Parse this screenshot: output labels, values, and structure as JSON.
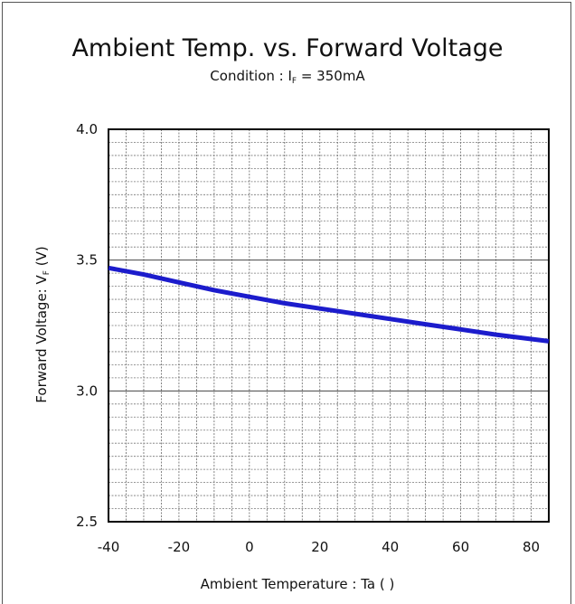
{
  "chart_data": {
    "type": "line",
    "title": "Ambient Temp. vs. Forward Voltage",
    "subtitle": {
      "prefix": "Condition :  I",
      "sub": "F",
      "suffix": " = 350mA"
    },
    "xlabel": "Ambient  Temperature : Ta (    )",
    "ylabel": {
      "main": "Forward Voltage: V",
      "sub": "F",
      "unit": " (V)"
    },
    "xlim": [
      -40,
      85
    ],
    "ylim": [
      2.5,
      4.0
    ],
    "xticks": [
      -40,
      -20,
      0,
      20,
      40,
      60,
      80
    ],
    "xtick_labels": [
      "-40",
      "-20",
      "0",
      "20",
      "40",
      "60",
      "80"
    ],
    "yticks": [
      2.5,
      3.0,
      3.5,
      4.0
    ],
    "ytick_labels": [
      "2.5",
      "3.0",
      "3.5",
      "4.0"
    ],
    "grid": true,
    "series": [
      {
        "color": "#1c1ccc",
        "x": [
          -40,
          -30,
          -20,
          -10,
          0,
          10,
          20,
          30,
          40,
          50,
          60,
          70,
          85
        ],
        "y": [
          3.47,
          3.445,
          3.415,
          3.385,
          3.36,
          3.335,
          3.315,
          3.295,
          3.275,
          3.255,
          3.235,
          3.215,
          3.19
        ]
      }
    ]
  }
}
